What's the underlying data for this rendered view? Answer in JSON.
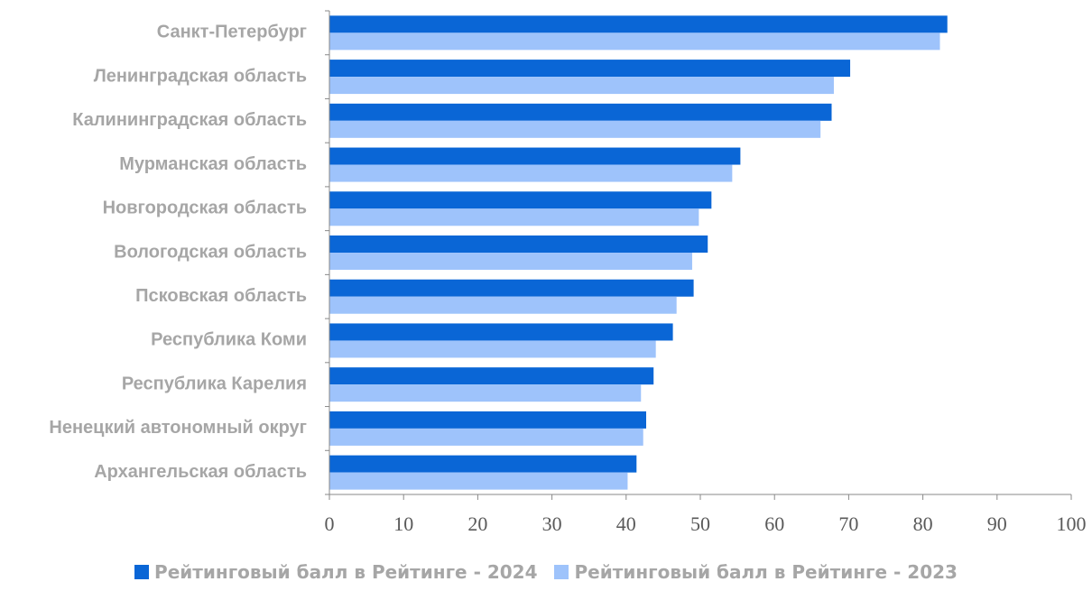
{
  "colors": {
    "series_2024": "#0a66d6",
    "series_2023": "#9ec3fb",
    "axis": "#888888",
    "category_text": "#a6a6a6",
    "tick_text": "#595959"
  },
  "chart_data": {
    "type": "bar",
    "orientation": "horizontal",
    "title": "",
    "xlabel": "",
    "ylabel": "",
    "xlim": [
      0,
      100
    ],
    "x_ticks": [
      "0",
      "10",
      "20",
      "30",
      "40",
      "50",
      "60",
      "70",
      "80",
      "90",
      "100"
    ],
    "grid": false,
    "legend_position": "bottom",
    "categories": [
      "Санкт-Петербург",
      "Ленинградская область",
      "Калининградская область",
      "Мурманская область",
      "Новгородская область",
      "Вологодская область",
      "Псковская область",
      "Республика Коми",
      "Республика Карелия",
      "Ненецкий автономный округ",
      "Архангельская область"
    ],
    "series": [
      {
        "name": "Рейтинговый балл в Рейтинге - 2024",
        "values": [
          83.3,
          70.2,
          67.7,
          55.4,
          51.5,
          51.0,
          49.1,
          46.3,
          43.7,
          42.7,
          41.4
        ]
      },
      {
        "name": "Рейтинговый балл в Рейтинге - 2023",
        "values": [
          82.3,
          68.0,
          66.2,
          54.3,
          49.8,
          48.9,
          46.8,
          44.0,
          42.0,
          42.3,
          40.2
        ]
      }
    ]
  }
}
